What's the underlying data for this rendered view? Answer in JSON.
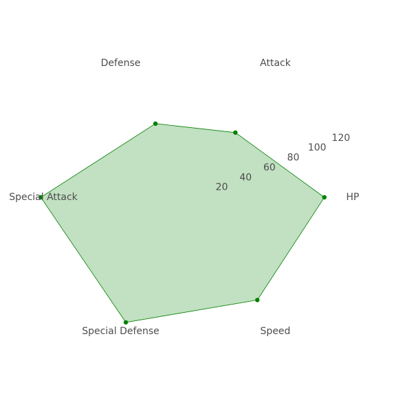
{
  "chart_data": {
    "type": "radar",
    "categories": [
      "HP",
      "Attack",
      "Defense",
      "Special Attack",
      "Special Defense",
      "Speed"
    ],
    "series": [
      {
        "values": [
          98,
          58,
          66,
          122,
          112,
          92
        ],
        "color": "#008000"
      }
    ],
    "rlim": [
      0,
      120
    ],
    "r_ticks": [
      "20",
      "40",
      "60",
      "80",
      "100",
      "120"
    ],
    "r_tick_values": [
      20,
      40,
      60,
      80,
      100,
      120
    ],
    "grid": false,
    "fill_color": "#c2e0c2",
    "line_color": "#008000"
  }
}
